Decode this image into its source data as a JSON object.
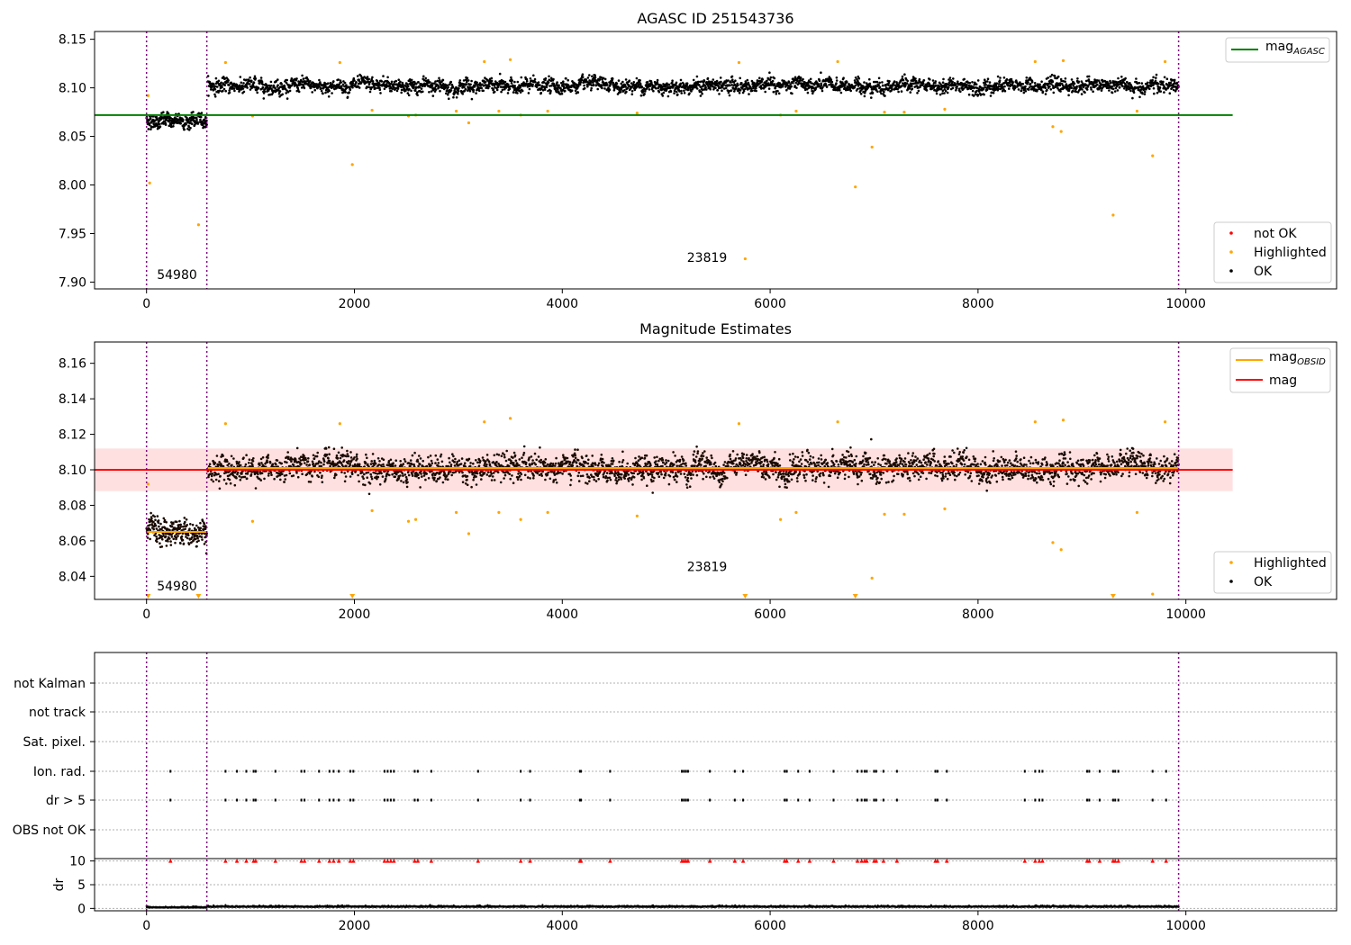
{
  "chart_data": [
    {
      "type": "scatter",
      "title": "AGASC ID 251543736",
      "xlim": [
        -500,
        11450
      ],
      "ylim": [
        7.893,
        8.158
      ],
      "xticks": [
        0,
        2000,
        4000,
        6000,
        8000,
        10000
      ],
      "yticks": [
        7.9,
        7.95,
        8.0,
        8.05,
        8.1,
        8.15
      ],
      "ytick_labels": [
        "7.90",
        "7.95",
        "8.00",
        "8.05",
        "8.10",
        "8.15"
      ],
      "vlines": [
        0,
        580,
        9930
      ],
      "vline_color": "#800080",
      "hlines": [
        {
          "name_html": "mag<sub>AGASC</sub>",
          "y": 8.072,
          "x": [
            -500,
            10450
          ],
          "color": "#008000"
        }
      ],
      "ok_segments": [
        {
          "x": [
            0,
            580
          ],
          "y_center": 8.066,
          "spread": 0.011,
          "n": 260
        },
        {
          "x": [
            590,
            9930
          ],
          "y_center": 8.102,
          "spread": 0.011,
          "n": 3200
        }
      ],
      "highlighted_points": [
        [
          15,
          8.092
        ],
        [
          30,
          8.002
        ],
        [
          500,
          7.959
        ],
        [
          760,
          8.126
        ],
        [
          1020,
          8.071
        ],
        [
          1860,
          8.126
        ],
        [
          1980,
          8.021
        ],
        [
          2170,
          8.077
        ],
        [
          2520,
          8.071
        ],
        [
          2590,
          8.072
        ],
        [
          2980,
          8.076
        ],
        [
          3100,
          8.064
        ],
        [
          3250,
          8.127
        ],
        [
          3390,
          8.076
        ],
        [
          3500,
          8.129
        ],
        [
          3600,
          8.072
        ],
        [
          3860,
          8.076
        ],
        [
          4720,
          8.074
        ],
        [
          5700,
          8.126
        ],
        [
          5760,
          7.924
        ],
        [
          6100,
          8.072
        ],
        [
          6250,
          8.076
        ],
        [
          6650,
          8.127
        ],
        [
          6820,
          7.998
        ],
        [
          6980,
          8.039
        ],
        [
          7100,
          8.075
        ],
        [
          7290,
          8.075
        ],
        [
          7680,
          8.078
        ],
        [
          8550,
          8.127
        ],
        [
          8720,
          8.06
        ],
        [
          8800,
          8.055
        ],
        [
          8820,
          8.128
        ],
        [
          9300,
          7.969
        ],
        [
          9530,
          8.076
        ],
        [
          9680,
          8.03
        ],
        [
          9800,
          8.127
        ]
      ],
      "annotations": [
        {
          "text": "54980",
          "x": 100,
          "y": 7.903
        },
        {
          "text": "23819",
          "x": 5200,
          "y": 7.921
        }
      ],
      "legend_upper": [
        {
          "label_html": "mag<sub>AGASC</sub>",
          "color": "#008000",
          "kind": "line"
        }
      ],
      "legend_lower": [
        {
          "label": "not OK",
          "color": "#ff0000",
          "kind": "dot"
        },
        {
          "label": "Highlighted",
          "color": "#ffa500",
          "kind": "dot"
        },
        {
          "label": "OK",
          "color": "#000000",
          "kind": "dot"
        }
      ]
    },
    {
      "type": "scatter",
      "title": "Magnitude Estimates",
      "xlim": [
        -500,
        11450
      ],
      "ylim": [
        8.027,
        8.172
      ],
      "xticks": [
        0,
        2000,
        4000,
        6000,
        8000,
        10000
      ],
      "yticks": [
        8.04,
        8.06,
        8.08,
        8.1,
        8.12,
        8.14,
        8.16
      ],
      "ytick_labels": [
        "8.04",
        "8.06",
        "8.08",
        "8.10",
        "8.12",
        "8.14",
        "8.16"
      ],
      "vlines": [
        0,
        580,
        9930
      ],
      "vline_color": "#800080",
      "band": {
        "x": [
          -500,
          10450
        ],
        "y": [
          8.088,
          8.112
        ],
        "color": "#ffcccc"
      },
      "hlines": [
        {
          "name": "mag",
          "y": 8.1,
          "x": [
            -500,
            10450
          ],
          "color": "#ff0000"
        },
        {
          "name_html": "mag<sub>OBSID</sub>",
          "y": 8.065,
          "x": [
            0,
            580
          ],
          "color": "#ffa500"
        },
        {
          "name_html": "mag<sub>OBSID</sub>",
          "y": 8.101,
          "x": [
            590,
            9930
          ],
          "color": "#ffa500"
        }
      ],
      "ok_segments": [
        {
          "x": [
            0,
            580
          ],
          "y_center": 8.065,
          "spread": 0.011,
          "n": 260
        },
        {
          "x": [
            590,
            9930
          ],
          "y_center": 8.101,
          "spread": 0.011,
          "n": 3200
        }
      ],
      "highlighted_points": [
        [
          15,
          8.092
        ],
        [
          760,
          8.126
        ],
        [
          1020,
          8.071
        ],
        [
          1860,
          8.126
        ],
        [
          2170,
          8.077
        ],
        [
          2520,
          8.071
        ],
        [
          2590,
          8.072
        ],
        [
          2980,
          8.076
        ],
        [
          3100,
          8.064
        ],
        [
          3250,
          8.127
        ],
        [
          3390,
          8.076
        ],
        [
          3500,
          8.129
        ],
        [
          3600,
          8.072
        ],
        [
          3860,
          8.076
        ],
        [
          4720,
          8.074
        ],
        [
          5700,
          8.126
        ],
        [
          6100,
          8.072
        ],
        [
          6250,
          8.076
        ],
        [
          6650,
          8.127
        ],
        [
          6980,
          8.039
        ],
        [
          7100,
          8.075
        ],
        [
          7290,
          8.075
        ],
        [
          7680,
          8.078
        ],
        [
          8550,
          8.127
        ],
        [
          8720,
          8.059
        ],
        [
          8800,
          8.055
        ],
        [
          8820,
          8.128
        ],
        [
          9530,
          8.076
        ],
        [
          9680,
          8.03
        ],
        [
          9800,
          8.127
        ]
      ],
      "clipped_markers_x": [
        15,
        500,
        1980,
        5760,
        6820,
        9300
      ],
      "clipped_marker_color": "#ffa500",
      "annotations": [
        {
          "text": "54980",
          "x": 100,
          "y": 8.032
        },
        {
          "text": "23819",
          "x": 5200,
          "y": 8.043
        }
      ],
      "legend_upper": [
        {
          "label_html": "mag<sub>OBSID</sub>",
          "color": "#ffa500",
          "kind": "line"
        },
        {
          "label": "mag",
          "color": "#ff0000",
          "kind": "line"
        }
      ],
      "legend_lower": [
        {
          "label": "Highlighted",
          "color": "#ffa500",
          "kind": "dot"
        },
        {
          "label": "OK",
          "color": "#000000",
          "kind": "dot"
        }
      ]
    },
    {
      "type": "scatter",
      "title": "",
      "xlim": [
        -500,
        11450
      ],
      "categories": [
        "not Kalman",
        "not track",
        "Sat. pixel.",
        "Ion. rad.",
        "dr > 5",
        "OBS not OK"
      ],
      "flag_marks_x": [
        230,
        760,
        870,
        960,
        1030,
        1050,
        1240,
        1490,
        1520,
        1660,
        1760,
        1800,
        1850,
        1960,
        1990,
        2290,
        2320,
        2350,
        2380,
        2580,
        2610,
        2740,
        3190,
        3600,
        3690,
        4170,
        4180,
        4460,
        5150,
        5170,
        5190,
        5210,
        5420,
        5660,
        5740,
        6140,
        6160,
        6270,
        6380,
        6610,
        6840,
        6880,
        6910,
        6930,
        7000,
        7020,
        7090,
        7220,
        7590,
        7610,
        7700,
        8450,
        8550,
        8590,
        8620,
        9050,
        9070,
        9170,
        9300,
        9320,
        9350,
        9680,
        9810
      ],
      "flag_rows": [
        "Ion. rad.",
        "dr > 5"
      ],
      "dr": {
        "ylabel": "dr",
        "ylim": [
          -0.5,
          10.5
        ],
        "yticks": [
          0,
          5,
          10
        ],
        "ytick_labels": [
          "0",
          "5",
          "10"
        ],
        "baseline_segments": [
          {
            "x": [
              0,
              580
            ],
            "y": 0.15
          },
          {
            "x": [
              590,
              9930
            ],
            "y": 0.3
          }
        ],
        "outlier_color": "#ff0000",
        "outlier_y": 10
      },
      "vlines": [
        0,
        580,
        9930
      ],
      "vline_color": "#800080"
    }
  ]
}
